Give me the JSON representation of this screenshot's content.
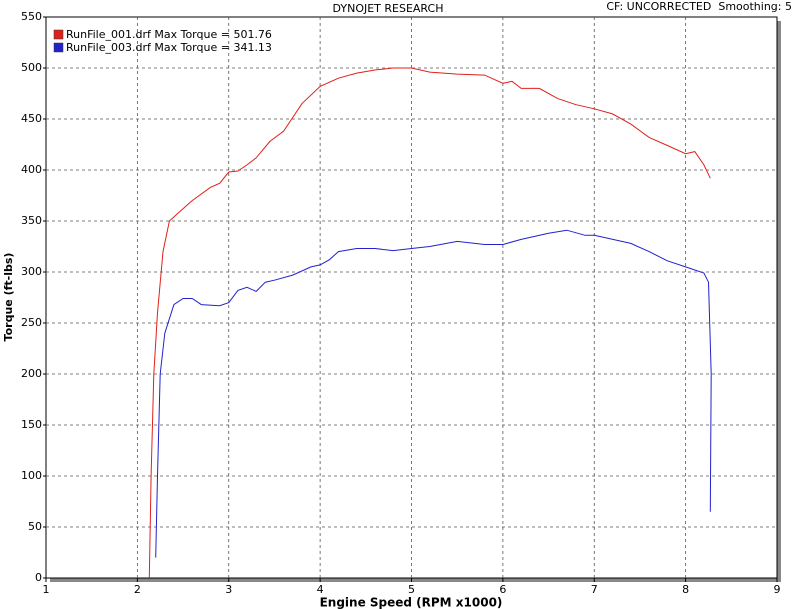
{
  "chart_data": {
    "type": "line",
    "title": "DYNOJET RESEARCH",
    "subtitle": "CF: UNCORRECTED  Smoothing: 5",
    "x_label": "Engine Speed (RPM x1000)",
    "y_label": "Torque (ft-lbs)",
    "xlim": [
      1,
      9
    ],
    "ylim": [
      0,
      550
    ],
    "xticks": [
      1,
      2,
      3,
      4,
      5,
      6,
      7,
      8,
      9
    ],
    "yticks": [
      0,
      50,
      100,
      150,
      200,
      250,
      300,
      350,
      400,
      450,
      500,
      550
    ],
    "grid": true,
    "legend": "top-left",
    "series": [
      {
        "name": "RunFile_001.drf Max Torque = 501.76",
        "color": "#e0201a",
        "x": [
          2.13,
          2.15,
          2.18,
          2.22,
          2.28,
          2.35,
          2.45,
          2.6,
          2.8,
          2.9,
          3.0,
          3.1,
          3.2,
          3.3,
          3.45,
          3.6,
          3.8,
          4.0,
          4.2,
          4.4,
          4.6,
          4.8,
          5.0,
          5.2,
          5.5,
          5.8,
          6.0,
          6.1,
          6.2,
          6.4,
          6.6,
          6.8,
          7.0,
          7.2,
          7.4,
          7.6,
          7.8,
          8.0,
          8.1,
          8.2,
          8.27
        ],
        "values": [
          0,
          100,
          200,
          260,
          320,
          350,
          358,
          370,
          383,
          387,
          398,
          399,
          405,
          412,
          428,
          438,
          465,
          482,
          490,
          495,
          498,
          500,
          500,
          496,
          494,
          493,
          485,
          487,
          480,
          480,
          470,
          464,
          460,
          455,
          445,
          432,
          424,
          416,
          418,
          405,
          392
        ]
      },
      {
        "name": "RunFile_003.drf Max Torque = 341.13",
        "color": "#2222cc",
        "x": [
          2.2,
          2.22,
          2.25,
          2.3,
          2.4,
          2.5,
          2.6,
          2.7,
          2.9,
          3.0,
          3.1,
          3.2,
          3.3,
          3.4,
          3.5,
          3.7,
          3.9,
          4.0,
          4.1,
          4.2,
          4.4,
          4.6,
          4.8,
          5.0,
          5.2,
          5.5,
          5.8,
          6.0,
          6.2,
          6.5,
          6.7,
          6.9,
          7.0,
          7.4,
          7.6,
          7.8,
          8.0,
          8.2,
          8.25,
          8.28,
          8.27
        ],
        "values": [
          20,
          100,
          200,
          240,
          268,
          274,
          274,
          268,
          267,
          270,
          282,
          285,
          281,
          290,
          292,
          297,
          305,
          307,
          312,
          320,
          323,
          323,
          321,
          323,
          325,
          330,
          327,
          327,
          332,
          338,
          341,
          336,
          336,
          328,
          320,
          311,
          305,
          299,
          290,
          200,
          65
        ]
      }
    ]
  }
}
